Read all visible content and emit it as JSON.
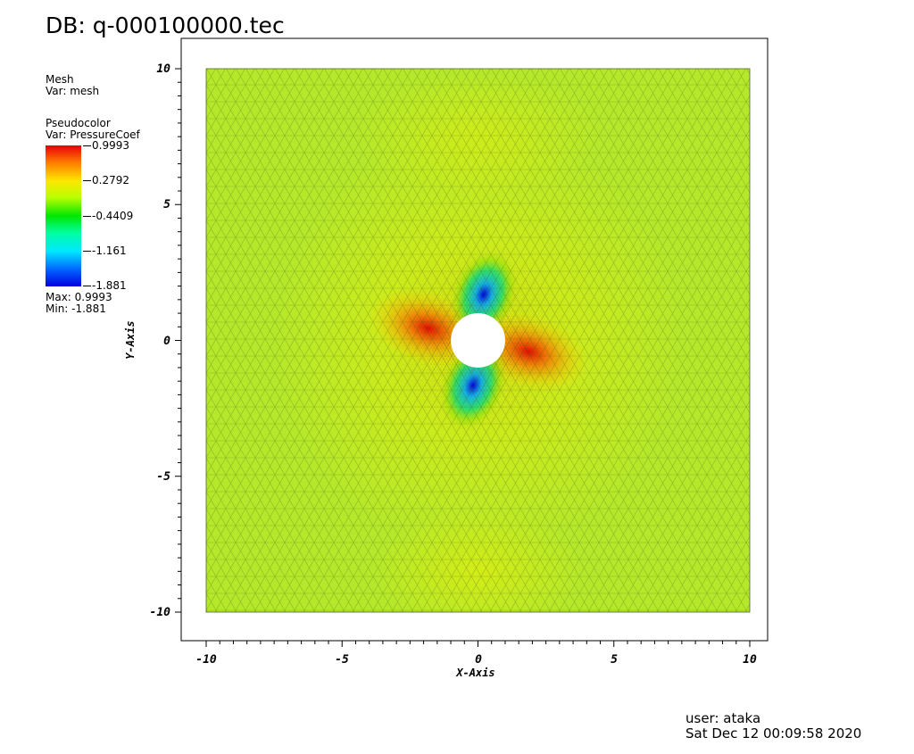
{
  "header": {
    "db_label": "DB: q-000100000.tec"
  },
  "legend": {
    "mesh": {
      "plot_type": "Mesh",
      "var": "Var: mesh"
    },
    "pseudocolor": {
      "plot_type": "Pseudocolor",
      "var": "Var: PressureCoef",
      "ticks": [
        "0.9993",
        "0.2792",
        "-0.4409",
        "-1.161",
        "-1.881"
      ],
      "max": "Max: 0.9993",
      "min": "Min: -1.881"
    }
  },
  "chart_data": {
    "type": "heatmap",
    "variable": "PressureCoef",
    "xlabel": "X-Axis",
    "ylabel": "Y-Axis",
    "xlim": [
      -10,
      10
    ],
    "ylim": [
      -10,
      10
    ],
    "xticks": [
      -10,
      -5,
      0,
      5,
      10
    ],
    "yticks": [
      10,
      5,
      0,
      -5,
      -10
    ],
    "xtick_labels": [
      "-10",
      "-5",
      "0",
      "5",
      "10"
    ],
    "ytick_labels": [
      "10",
      "5",
      "0",
      "-5",
      "-10"
    ],
    "colorbar_range": [
      -1.881,
      0.9993
    ],
    "obstacle": {
      "shape": "circle",
      "center": [
        0,
        0
      ],
      "radius": 1
    },
    "colors": {
      "high": "#e60000",
      "mid": "#f2f000",
      "low": "#0000e6",
      "background": "#b5e82a"
    }
  },
  "footer": {
    "user": "user: ataka",
    "date": "Sat Dec 12 00:09:58 2020"
  }
}
